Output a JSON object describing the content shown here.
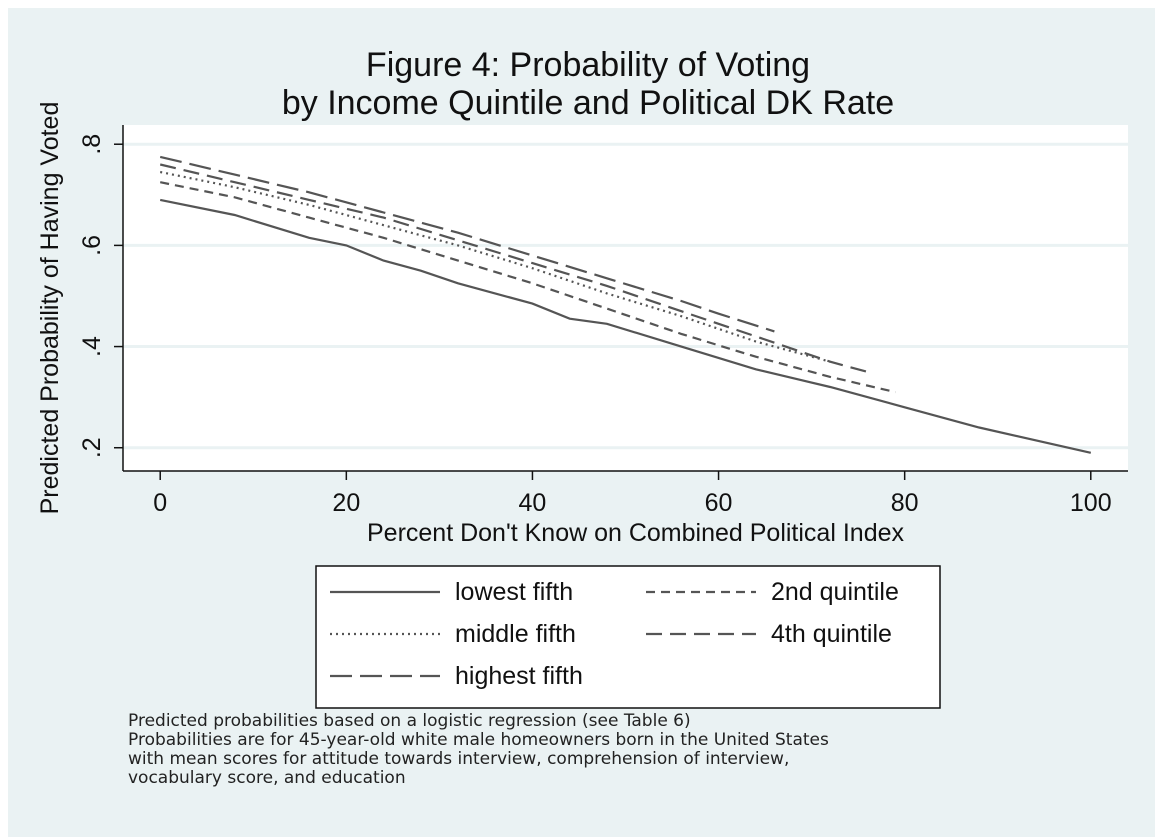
{
  "chart_data": {
    "type": "line",
    "title": [
      "Figure 4: Probability of Voting",
      "by Income Quintile and Political DK Rate"
    ],
    "xlabel": "Percent Don't Know on Combined Political Index",
    "ylabel": "Predicted Probability of Having Voted",
    "xlim": [
      -4,
      104
    ],
    "ylim": [
      0.154,
      0.838
    ],
    "xticks": [
      0,
      20,
      40,
      60,
      80,
      100
    ],
    "xtick_labels": [
      "0",
      "20",
      "40",
      "60",
      "80",
      "100"
    ],
    "yticks": [
      0.2,
      0.4,
      0.6,
      0.8
    ],
    "ytick_labels": [
      ".2",
      ".4",
      ".6",
      ".8"
    ],
    "grid": true,
    "legend_position": "bottom",
    "series": [
      {
        "name": "lowest fifth",
        "style": "solid",
        "x": [
          0,
          8,
          16,
          20,
          24,
          28,
          32,
          40,
          44,
          48,
          56,
          64,
          72,
          80,
          88,
          100
        ],
        "y": [
          0.69,
          0.66,
          0.615,
          0.6,
          0.57,
          0.55,
          0.525,
          0.485,
          0.455,
          0.445,
          0.4,
          0.355,
          0.32,
          0.28,
          0.24,
          0.19
        ]
      },
      {
        "name": "2nd quintile",
        "style": "dash",
        "x": [
          0,
          8,
          16,
          24,
          32,
          40,
          48,
          56,
          64,
          72,
          79
        ],
        "y": [
          0.725,
          0.695,
          0.655,
          0.615,
          0.57,
          0.525,
          0.475,
          0.425,
          0.38,
          0.34,
          0.31
        ]
      },
      {
        "name": "middle fifth",
        "style": "dot",
        "x": [
          0,
          8,
          16,
          24,
          32,
          40,
          48,
          56,
          64,
          72
        ],
        "y": [
          0.745,
          0.715,
          0.68,
          0.64,
          0.6,
          0.555,
          0.505,
          0.46,
          0.41,
          0.37
        ]
      },
      {
        "name": "4th quintile",
        "style": "longdash",
        "x": [
          0,
          8,
          16,
          24,
          32,
          40,
          48,
          56,
          64,
          72,
          76
        ],
        "y": [
          0.76,
          0.725,
          0.69,
          0.655,
          0.61,
          0.565,
          0.52,
          0.47,
          0.42,
          0.37,
          0.35
        ]
      },
      {
        "name": "highest fifth",
        "style": "dashdot",
        "x": [
          0,
          8,
          16,
          24,
          32,
          40,
          48,
          56,
          60,
          66
        ],
        "y": [
          0.775,
          0.74,
          0.705,
          0.665,
          0.625,
          0.58,
          0.535,
          0.49,
          0.465,
          0.43
        ]
      }
    ],
    "legend_order": [
      "lowest fifth",
      "2nd quintile",
      "middle fifth",
      "4th quintile",
      "highest fifth"
    ]
  },
  "notes": [
    "Predicted probabilities based on a logistic regression (see Table 6)",
    "Probabilities are for 45-year-old white male homeowners born in the United States",
    "with mean scores for attitude towards interview, comprehension of interview,",
    "vocabulary score, and education"
  ],
  "colors": {
    "background": "#eaf2f3",
    "plot_background": "#ffffff",
    "lines": "#555555",
    "grid": "#eaf2f3"
  }
}
